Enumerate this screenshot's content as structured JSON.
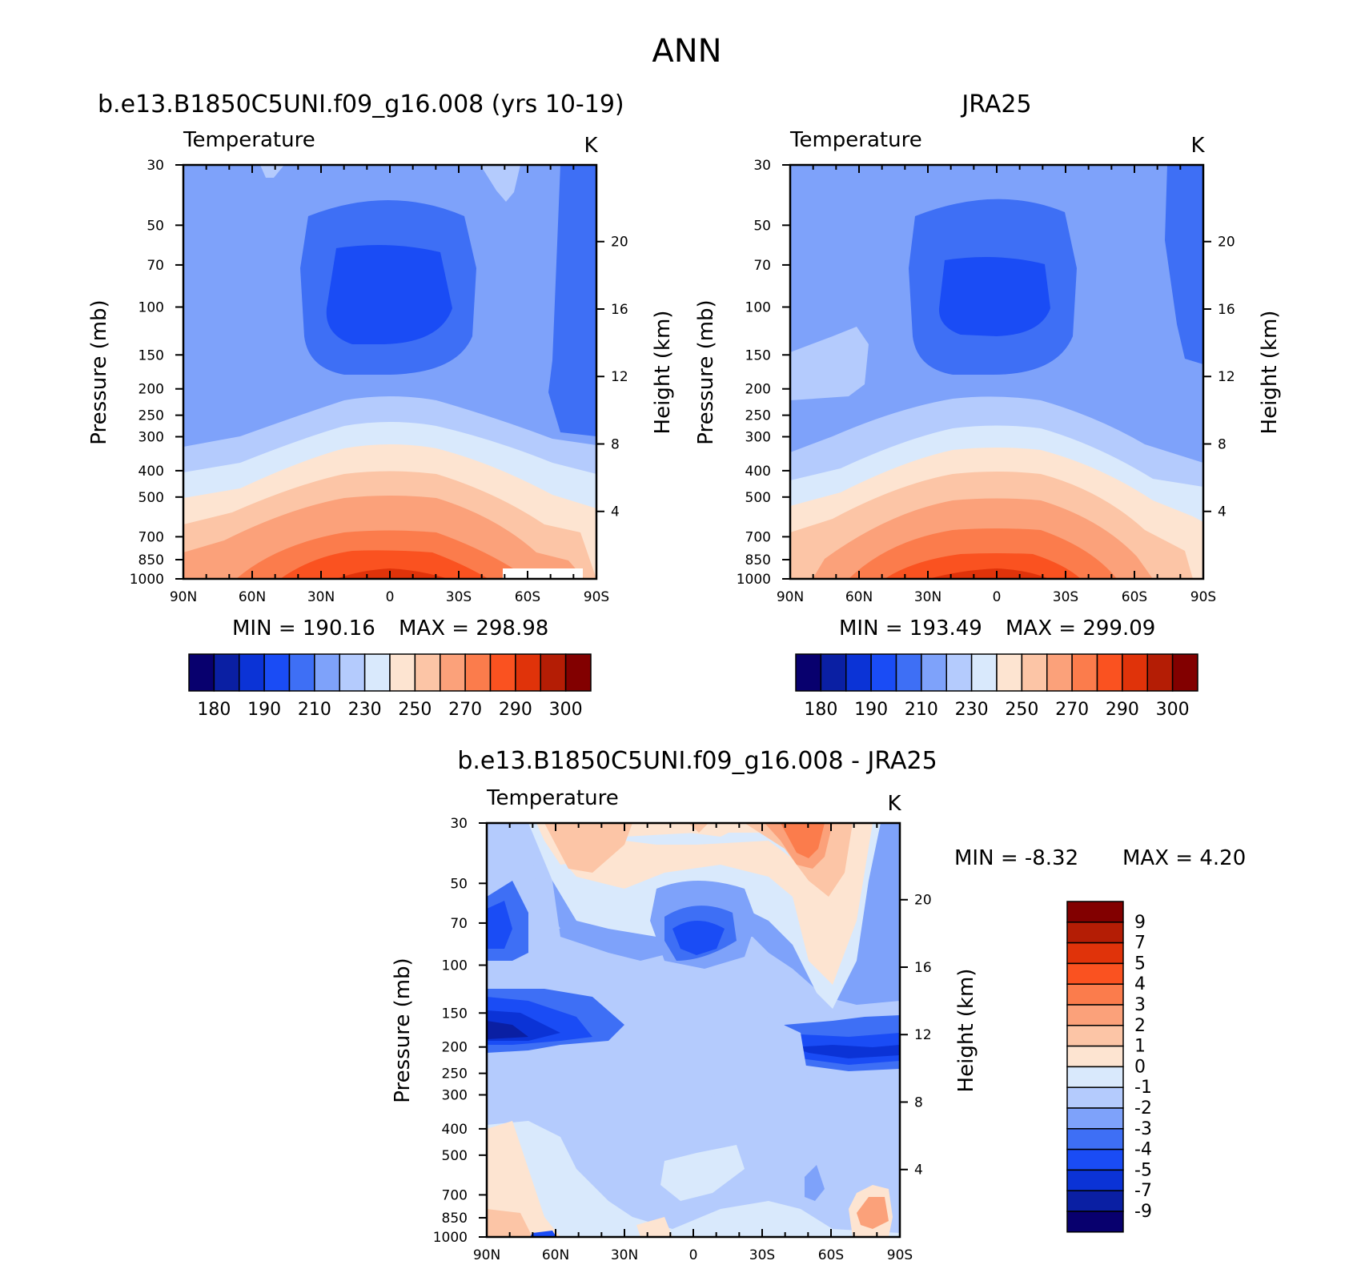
{
  "title": "ANN",
  "colors": {
    "abs_scale": [
      "#08006e",
      "#0a1fa3",
      "#0b33d6",
      "#1a4cf5",
      "#3e6ff5",
      "#7ea2fa",
      "#b4cbfd",
      "#d9e9fc",
      "#fde4d1",
      "#fcc5a6",
      "#fba17a",
      "#fb7c4c",
      "#fa5220",
      "#e0330a",
      "#b41d05",
      "#820000"
    ],
    "diff_scale": [
      "#08006e",
      "#0a1fa3",
      "#0b33d6",
      "#1a4cf5",
      "#3e6ff5",
      "#7ea2fa",
      "#b4cbfd",
      "#d9e9fc",
      "#fde4d1",
      "#fcc5a6",
      "#fba17a",
      "#fb7c4c",
      "#fa5220",
      "#e0330a",
      "#b41d05",
      "#820000"
    ]
  },
  "chart_data": [
    {
      "id": "model",
      "type": "contour",
      "title": "b.e13.B1850C5UNI.f09_g16.008 (yrs 10-19)",
      "variable": "Temperature",
      "units": "K",
      "xlabel": "",
      "ylabel": "Pressure (mb)",
      "ylabel2": "Height (km)",
      "x_ticks": [
        "90N",
        "60N",
        "30N",
        "0",
        "30S",
        "60S",
        "90S"
      ],
      "y_ticks": [
        "30",
        "50",
        "70",
        "100",
        "150",
        "200",
        "250",
        "300",
        "400",
        "500",
        "700",
        "850",
        "1000"
      ],
      "y2_ticks": [
        "20",
        "16",
        "12",
        "8",
        "4"
      ],
      "ylim": [
        1000,
        30
      ],
      "min_label": "MIN = 190.16",
      "max_label": "MAX = 298.98",
      "min": 190.16,
      "max": 298.98,
      "colorbar_labels": [
        "180",
        "190",
        "210",
        "230",
        "250",
        "270",
        "290",
        "300"
      ],
      "colorbar_boxes": 16
    },
    {
      "id": "obs",
      "type": "contour",
      "title": "JRA25",
      "variable": "Temperature",
      "units": "K",
      "ylabel": "Pressure (mb)",
      "ylabel2": "Height (km)",
      "x_ticks": [
        "90N",
        "60N",
        "30N",
        "0",
        "30S",
        "60S",
        "90S"
      ],
      "y_ticks": [
        "30",
        "50",
        "70",
        "100",
        "150",
        "200",
        "250",
        "300",
        "400",
        "500",
        "700",
        "850",
        "1000"
      ],
      "y2_ticks": [
        "20",
        "16",
        "12",
        "8",
        "4"
      ],
      "ylim": [
        1000,
        30
      ],
      "min_label": "MIN = 193.49",
      "max_label": "MAX = 299.09",
      "min": 193.49,
      "max": 299.09,
      "colorbar_labels": [
        "180",
        "190",
        "210",
        "230",
        "250",
        "270",
        "290",
        "300"
      ],
      "colorbar_boxes": 16
    },
    {
      "id": "diff",
      "type": "contour",
      "title": "b.e13.B1850C5UNI.f09_g16.008 - JRA25",
      "variable": "Temperature",
      "units": "K",
      "ylabel": "Pressure (mb)",
      "ylabel2": "Height (km)",
      "x_ticks": [
        "90N",
        "60N",
        "30N",
        "0",
        "30S",
        "60S",
        "90S"
      ],
      "y_ticks": [
        "30",
        "50",
        "70",
        "100",
        "150",
        "200",
        "250",
        "300",
        "400",
        "500",
        "700",
        "850",
        "1000"
      ],
      "y2_ticks": [
        "20",
        "16",
        "12",
        "8",
        "4"
      ],
      "ylim": [
        1000,
        30
      ],
      "min_label": "MIN = -8.32",
      "max_label": "MAX = 4.20",
      "min": -8.32,
      "max": 4.2,
      "colorbar_labels": [
        "9",
        "7",
        "5",
        "4",
        "3",
        "2",
        "1",
        "0",
        "-1",
        "-2",
        "-3",
        "-4",
        "-5",
        "-7",
        "-9"
      ],
      "colorbar_boxes": 16
    }
  ]
}
